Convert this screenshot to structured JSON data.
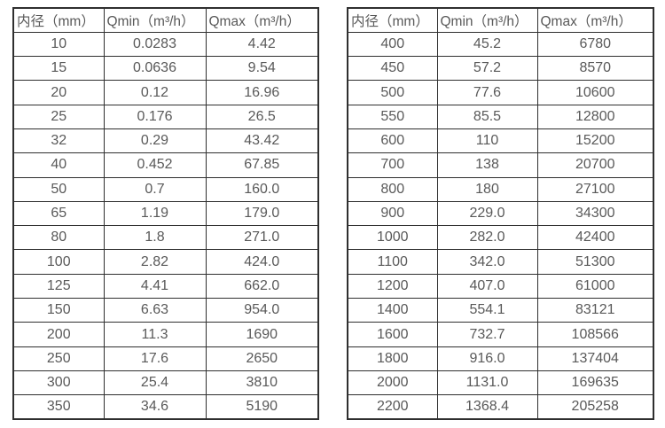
{
  "page": {
    "background_color": "#ffffff",
    "border_color": "#2f2f2f",
    "text_color": "#595959"
  },
  "tables": [
    {
      "name": "flow-spec-table-small-diameters",
      "headers": [
        "内径（mm）",
        "Qmin（m³/h）",
        "Qmax（m³/h）"
      ],
      "rows": [
        [
          "10",
          "0.0283",
          "4.42"
        ],
        [
          "15",
          "0.0636",
          "9.54"
        ],
        [
          "20",
          "0.12",
          "16.96"
        ],
        [
          "25",
          "0.176",
          "26.5"
        ],
        [
          "32",
          "0.29",
          "43.42"
        ],
        [
          "40",
          "0.452",
          "67.85"
        ],
        [
          "50",
          "0.7",
          "160.0"
        ],
        [
          "65",
          "1.19",
          "179.0"
        ],
        [
          "80",
          "1.8",
          "271.0"
        ],
        [
          "100",
          "2.82",
          "424.0"
        ],
        [
          "125",
          "4.41",
          "662.0"
        ],
        [
          "150",
          "6.63",
          "954.0"
        ],
        [
          "200",
          "11.3",
          "1690"
        ],
        [
          "250",
          "17.6",
          "2650"
        ],
        [
          "300",
          "25.4",
          "3810"
        ],
        [
          "350",
          "34.6",
          "5190"
        ]
      ]
    },
    {
      "name": "flow-spec-table-large-diameters",
      "headers": [
        "内径（mm）",
        "Qmin（m³/h）",
        "Qmax（m³/h）"
      ],
      "rows": [
        [
          "400",
          "45.2",
          "6780"
        ],
        [
          "450",
          "57.2",
          "8570"
        ],
        [
          "500",
          "77.6",
          "10600"
        ],
        [
          "550",
          "85.5",
          "12800"
        ],
        [
          "600",
          "110",
          "15200"
        ],
        [
          "700",
          "138",
          "20700"
        ],
        [
          "800",
          "180",
          "27100"
        ],
        [
          "900",
          "229.0",
          "34300"
        ],
        [
          "1000",
          "282.0",
          "42400"
        ],
        [
          "1100",
          "342.0",
          "51300"
        ],
        [
          "1200",
          "407.0",
          "61000"
        ],
        [
          "1400",
          "554.1",
          "83121"
        ],
        [
          "1600",
          "732.7",
          "108566"
        ],
        [
          "1800",
          "916.0",
          "137404"
        ],
        [
          "2000",
          "1131.0",
          "169635"
        ],
        [
          "2200",
          "1368.4",
          "205258"
        ]
      ]
    }
  ]
}
